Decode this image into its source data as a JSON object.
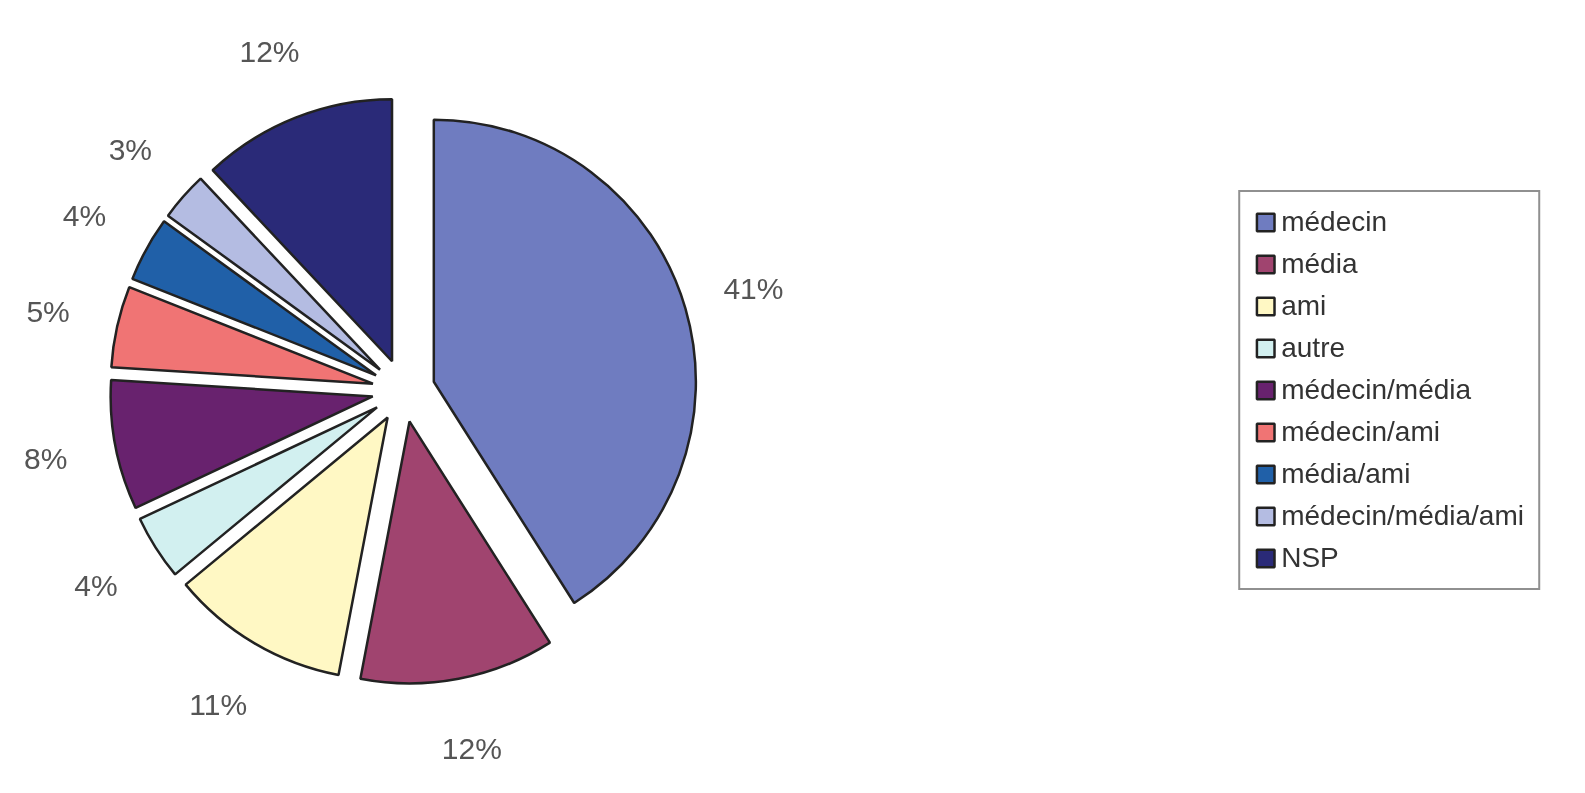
{
  "chart_data": {
    "type": "pie",
    "categories": [
      "médecin",
      "média",
      "ami",
      "autre",
      "médecin/média",
      "médecin/ami",
      "média/ami",
      "médecin/média/ami",
      "NSP"
    ],
    "values": [
      41,
      12,
      11,
      4,
      8,
      5,
      4,
      3,
      12
    ],
    "value_labels": [
      "41%",
      "12%",
      "11%",
      "4%",
      "8%",
      "5%",
      "4%",
      "3%",
      "12%"
    ],
    "colors": [
      "#6f7cc0",
      "#a0446f",
      "#fff8c4",
      "#d2f0f0",
      "#68226e",
      "#f07474",
      "#2060a8",
      "#b4bce2",
      "#2a2a78"
    ],
    "legend": "right"
  }
}
